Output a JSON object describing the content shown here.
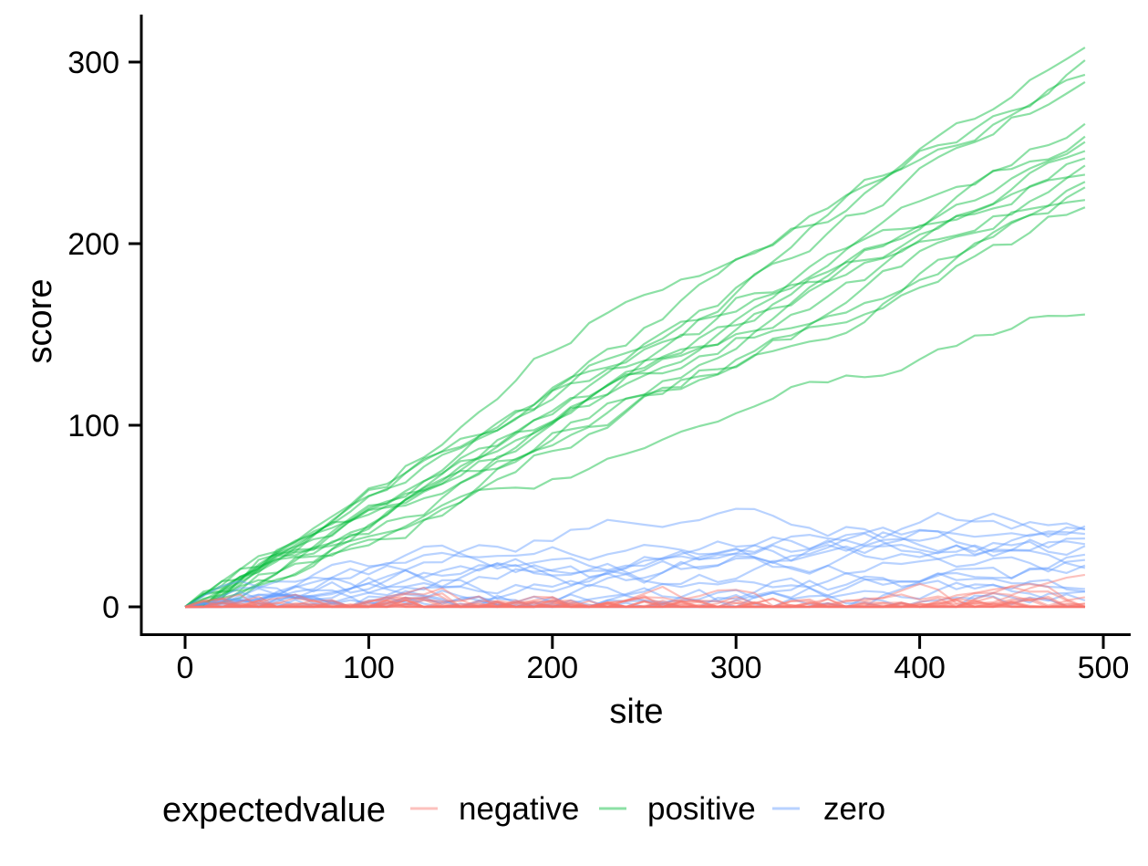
{
  "figure": {
    "background": "#FFFFFF",
    "text_color": "#000000",
    "axis_color": "#000000"
  },
  "chart_data": {
    "type": "line",
    "title": "",
    "xlabel": "site",
    "ylabel": "score",
    "xlim": [
      0,
      500
    ],
    "ylim": [
      0,
      310
    ],
    "x_ticks": [
      0,
      100,
      200,
      300,
      400,
      500
    ],
    "y_ticks": [
      0,
      100,
      200,
      300
    ],
    "grid": false,
    "line_opacity": 0.45,
    "line_width": 2.2,
    "x_step": 10,
    "x_max": 490,
    "legend": {
      "title": "expectedvalue",
      "position": "bottom",
      "items": [
        {
          "label": "negative",
          "color": "#F8766D"
        },
        {
          "label": "positive",
          "color": "#00BA38"
        },
        {
          "label": "zero",
          "color": "#619CFF"
        }
      ]
    },
    "series_description": "random-walk score traces starting at (0,0), one vertex every 10 sites up to site 490",
    "series": [
      {
        "group": "positive",
        "seed": 3,
        "sigma": 4.5,
        "final": 308
      },
      {
        "group": "positive",
        "seed": 7,
        "sigma": 4.2,
        "final": 301
      },
      {
        "group": "positive",
        "seed": 12,
        "sigma": 4.8,
        "final": 293
      },
      {
        "group": "positive",
        "seed": 19,
        "sigma": 4.5,
        "final": 289
      },
      {
        "group": "positive",
        "seed": 23,
        "sigma": 5.0,
        "final": 266
      },
      {
        "group": "positive",
        "seed": 31,
        "sigma": 4.4,
        "final": 259
      },
      {
        "group": "positive",
        "seed": 38,
        "sigma": 4.7,
        "final": 256
      },
      {
        "group": "positive",
        "seed": 42,
        "sigma": 4.3,
        "final": 251
      },
      {
        "group": "positive",
        "seed": 47,
        "sigma": 4.9,
        "final": 247
      },
      {
        "group": "positive",
        "seed": 53,
        "sigma": 4.5,
        "final": 243
      },
      {
        "group": "positive",
        "seed": 60,
        "sigma": 4.6,
        "final": 238
      },
      {
        "group": "positive",
        "seed": 66,
        "sigma": 4.4,
        "final": 234
      },
      {
        "group": "positive",
        "seed": 71,
        "sigma": 4.8,
        "final": 231
      },
      {
        "group": "positive",
        "seed": 79,
        "sigma": 4.5,
        "final": 224
      },
      {
        "group": "positive",
        "seed": 84,
        "sigma": 4.7,
        "final": 220
      },
      {
        "group": "positive",
        "seed": 92,
        "sigma": 4.6,
        "final": 161
      },
      {
        "group": "zero",
        "seed": 101,
        "drift": 0.3,
        "sigma": 6.5,
        "clamp0": true,
        "vmax": 54
      },
      {
        "group": "zero",
        "seed": 104,
        "drift": 0.0,
        "sigma": 6.0,
        "clamp0": true,
        "vmax": 54
      },
      {
        "group": "zero",
        "seed": 108,
        "drift": 0.15,
        "sigma": 5.5,
        "clamp0": true,
        "vmax": 54
      },
      {
        "group": "zero",
        "seed": 113,
        "drift": -0.1,
        "sigma": 5.0,
        "clamp0": true,
        "vmax": 54
      },
      {
        "group": "zero",
        "seed": 117,
        "drift": 0.2,
        "sigma": 6.2,
        "clamp0": true,
        "vmax": 54
      },
      {
        "group": "zero",
        "seed": 122,
        "drift": 0.0,
        "sigma": 4.8,
        "clamp0": true,
        "vmax": 54
      },
      {
        "group": "zero",
        "seed": 127,
        "drift": 0.1,
        "sigma": 5.8,
        "clamp0": true,
        "vmax": 54
      },
      {
        "group": "zero",
        "seed": 131,
        "drift": -0.15,
        "sigma": 5.2,
        "clamp0": true,
        "vmax": 54
      },
      {
        "group": "zero",
        "seed": 136,
        "drift": 0.25,
        "sigma": 6.0,
        "clamp0": true,
        "vmax": 54
      },
      {
        "group": "zero",
        "seed": 142,
        "drift": 0.0,
        "sigma": 4.5,
        "clamp0": true,
        "vmax": 54
      },
      {
        "group": "zero",
        "seed": 147,
        "drift": 0.05,
        "sigma": 5.5,
        "clamp0": true,
        "vmax": 54
      },
      {
        "group": "zero",
        "seed": 151,
        "drift": 0.2,
        "sigma": 6.3,
        "clamp0": true,
        "vmax": 54
      },
      {
        "group": "zero",
        "seed": 156,
        "drift": -0.05,
        "sigma": 4.7,
        "clamp0": true,
        "vmax": 54
      },
      {
        "group": "zero",
        "seed": 161,
        "drift": 0.15,
        "sigma": 5.9,
        "clamp0": true,
        "vmax": 54
      },
      {
        "group": "zero",
        "seed": 166,
        "drift": 0.0,
        "sigma": 5.1,
        "clamp0": true,
        "vmax": 54
      },
      {
        "group": "zero",
        "seed": 171,
        "drift": 0.1,
        "sigma": 6.1,
        "clamp0": true,
        "vmax": 54
      },
      {
        "group": "negative",
        "seed": 201,
        "drift": -2,
        "sigma": 6.0,
        "clamp0": true,
        "vmax": 18
      },
      {
        "group": "negative",
        "seed": 205,
        "drift": -2,
        "sigma": 5.5,
        "clamp0": true,
        "vmax": 18
      },
      {
        "group": "negative",
        "seed": 209,
        "drift": -2,
        "sigma": 6.5,
        "clamp0": true,
        "vmax": 18
      },
      {
        "group": "negative",
        "seed": 214,
        "drift": -2,
        "sigma": 5.0,
        "clamp0": true,
        "vmax": 18
      },
      {
        "group": "negative",
        "seed": 218,
        "drift": -2,
        "sigma": 5.8,
        "clamp0": true,
        "vmax": 18
      },
      {
        "group": "negative",
        "seed": 223,
        "drift": -2,
        "sigma": 6.2,
        "clamp0": true,
        "vmax": 18
      },
      {
        "group": "negative",
        "seed": 228,
        "drift": -2,
        "sigma": 4.8,
        "clamp0": true,
        "vmax": 18
      },
      {
        "group": "negative",
        "seed": 232,
        "drift": -2,
        "sigma": 5.4,
        "clamp0": true,
        "vmax": 18
      },
      {
        "group": "negative",
        "seed": 237,
        "drift": -2,
        "sigma": 6.0,
        "clamp0": true,
        "vmax": 18
      },
      {
        "group": "negative",
        "seed": 243,
        "drift": -2,
        "sigma": 5.2,
        "clamp0": true,
        "vmax": 18
      },
      {
        "group": "negative",
        "seed": 248,
        "drift": -2,
        "sigma": 6.4,
        "clamp0": true,
        "vmax": 18
      },
      {
        "group": "negative",
        "seed": 252,
        "drift": -2,
        "sigma": 4.6,
        "clamp0": true,
        "vmax": 18
      },
      {
        "group": "negative",
        "seed": 257,
        "drift": -2,
        "sigma": 5.6,
        "clamp0": true,
        "vmax": 18
      },
      {
        "group": "negative",
        "seed": 262,
        "drift": -2,
        "sigma": 6.1,
        "clamp0": true,
        "vmax": 18
      },
      {
        "group": "negative",
        "seed": 267,
        "drift": -2,
        "sigma": 5.0,
        "clamp0": true,
        "vmax": 18
      },
      {
        "group": "negative",
        "seed": 272,
        "drift": -2,
        "sigma": 5.9,
        "clamp0": true,
        "vmax": 18
      }
    ]
  }
}
